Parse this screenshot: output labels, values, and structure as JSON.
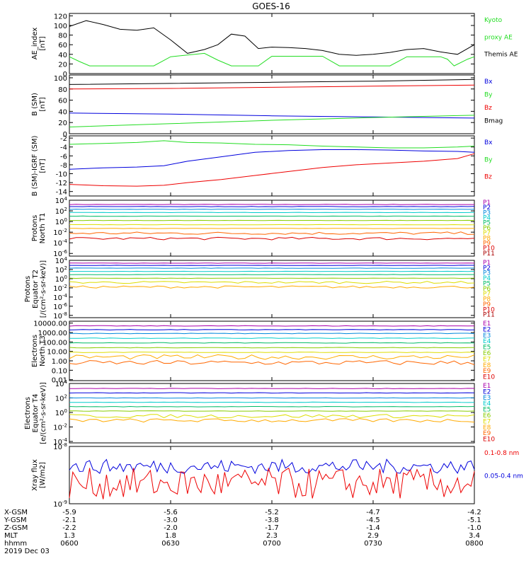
{
  "title": "GOES-16",
  "colors": {
    "black": "#000000",
    "green": "#22dd22",
    "red": "#ee0000",
    "blue": "#0000dd",
    "spec": [
      "#000000",
      "#aa00aa",
      "#0000dd",
      "#0088dd",
      "#00cccc",
      "#00bb66",
      "#88cc00",
      "#dddd00",
      "#ffaa00",
      "#ff6600",
      "#dd0000",
      "#aa0000"
    ]
  },
  "chart_data": [
    {
      "id": "ae",
      "type": "line",
      "ylabel": [
        "AE_index",
        "[nT]"
      ],
      "ylim": [
        0,
        125
      ],
      "yticks": [
        "0",
        "20",
        "40",
        "60",
        "80",
        "100",
        "120"
      ],
      "ytickvals": [
        0,
        20,
        40,
        60,
        80,
        100,
        120
      ],
      "series": [
        {
          "name": "Themis AE",
          "color": "black",
          "x": [
            0,
            5,
            10,
            15,
            20,
            25,
            30,
            35,
            40,
            44,
            48,
            52,
            56,
            60,
            65,
            70,
            75,
            80,
            85,
            90,
            95,
            100,
            105,
            110,
            115,
            120
          ],
          "y": [
            98,
            110,
            102,
            92,
            90,
            95,
            70,
            42,
            50,
            60,
            82,
            78,
            52,
            55,
            54,
            52,
            48,
            40,
            38,
            40,
            44,
            50,
            52,
            45,
            40,
            60
          ]
        },
        {
          "name": "Kyoto proxy AE",
          "color": "green",
          "x": [
            0,
            3,
            6,
            10,
            20,
            25,
            30,
            40,
            44,
            48,
            52,
            56,
            60,
            70,
            75,
            80,
            90,
            95,
            100,
            110,
            112,
            114,
            118,
            120
          ],
          "y": [
            35,
            25,
            16,
            16,
            16,
            16,
            35,
            42,
            28,
            16,
            16,
            16,
            36,
            36,
            36,
            16,
            16,
            16,
            35,
            35,
            30,
            16,
            30,
            35
          ]
        }
      ],
      "legend": [
        {
          "text": "Kyoto",
          "color": "green"
        },
        {
          "text": "proxy AE",
          "color": "green"
        },
        {
          "text": "Themis AE",
          "color": "black"
        }
      ]
    },
    {
      "id": "bsm",
      "type": "line",
      "ylabel": [
        "B (SM)",
        "[nT]"
      ],
      "ylim": [
        0,
        105
      ],
      "yticks": [
        "0",
        "20",
        "40",
        "60",
        "80",
        "100"
      ],
      "ytickvals": [
        0,
        20,
        40,
        60,
        80,
        100
      ],
      "series": [
        {
          "name": "Bx",
          "color": "blue",
          "x": [
            0,
            30,
            60,
            90,
            120
          ],
          "y": [
            37,
            35,
            32,
            30,
            28
          ]
        },
        {
          "name": "By",
          "color": "green",
          "x": [
            0,
            30,
            60,
            90,
            120
          ],
          "y": [
            12,
            18,
            24,
            29,
            33
          ]
        },
        {
          "name": "Bz",
          "color": "red",
          "x": [
            0,
            30,
            60,
            90,
            120
          ],
          "y": [
            80,
            81,
            83,
            85,
            87
          ]
        },
        {
          "name": "Bmag",
          "color": "black",
          "x": [
            0,
            30,
            60,
            90,
            120
          ],
          "y": [
            88,
            90,
            92,
            94,
            97
          ]
        }
      ],
      "legend": [
        {
          "text": "Bx",
          "color": "blue"
        },
        {
          "text": "By",
          "color": "green"
        },
        {
          "text": "Bz",
          "color": "red"
        },
        {
          "text": "Bmag",
          "color": "black"
        }
      ]
    },
    {
      "id": "digrf",
      "type": "line",
      "ylabel": [
        "B (SM)-IGRF (SM)",
        "[nT]"
      ],
      "ylim": [
        -15,
        -1.5
      ],
      "yticks": [
        "-2",
        "-4",
        "-6",
        "-8",
        "-10",
        "-12",
        "-14"
      ],
      "ytickvals": [
        -2,
        -4,
        -6,
        -8,
        -10,
        -12,
        -14
      ],
      "series": [
        {
          "name": "Bx",
          "color": "blue",
          "x": [
            0,
            10,
            20,
            28,
            35,
            45,
            55,
            65,
            75,
            85,
            95,
            105,
            115,
            120
          ],
          "y": [
            -9,
            -8.7,
            -8.5,
            -8.2,
            -7.2,
            -6.2,
            -5.2,
            -4.8,
            -4.6,
            -4.6,
            -4.7,
            -4.9,
            -5.0,
            -5.2
          ]
        },
        {
          "name": "By",
          "color": "green",
          "x": [
            0,
            10,
            20,
            28,
            35,
            45,
            55,
            65,
            75,
            85,
            95,
            105,
            115,
            120
          ],
          "y": [
            -3.4,
            -3.2,
            -3.0,
            -2.6,
            -3.0,
            -3.1,
            -3.4,
            -3.5,
            -3.8,
            -4.0,
            -4.2,
            -4.2,
            -4.0,
            -3.8
          ]
        },
        {
          "name": "Bz",
          "color": "red",
          "x": [
            0,
            10,
            20,
            28,
            35,
            45,
            55,
            65,
            75,
            85,
            95,
            105,
            115,
            120
          ],
          "y": [
            -12.4,
            -12.7,
            -12.8,
            -12.6,
            -12.0,
            -11.3,
            -10.4,
            -9.5,
            -8.6,
            -8.0,
            -7.6,
            -7.2,
            -6.6,
            -5.5
          ]
        }
      ],
      "legend": [
        {
          "text": "Bx",
          "color": "blue"
        },
        {
          "text": "By",
          "color": "green"
        },
        {
          "text": "Bz",
          "color": "red"
        }
      ]
    },
    {
      "id": "pnorth",
      "type": "line",
      "log": true,
      "ylabel": [
        "Protons",
        "North T1"
      ],
      "ylim": [
        -6.5,
        4
      ],
      "yticks": [
        "10^4",
        "10^2",
        "10^0",
        "10^-2",
        "10^-4",
        "10^-6"
      ],
      "ytickvals": [
        4,
        2,
        0,
        -2,
        -4,
        -6
      ],
      "levels": [
        3.2,
        2.8,
        2.3,
        1.7,
        1.0,
        0.2,
        -0.6,
        -1.3,
        -2.2,
        -3.2
      ],
      "legend": [
        "P1",
        "P2",
        "P3",
        "P4",
        "P5",
        "P6",
        "P7",
        "P8",
        "P9",
        "P10",
        "P11"
      ]
    },
    {
      "id": "pequator",
      "type": "line",
      "log": true,
      "ylabel": [
        "Protons",
        "Equator T2",
        "[/(cm²-s-sr-keV)]"
      ],
      "ylim": [
        -8.5,
        4
      ],
      "yticks": [
        "10^4",
        "10^2",
        "10^0",
        "10^-2",
        "10^-4",
        "10^-6",
        "10^-8"
      ],
      "ytickvals": [
        4,
        2,
        0,
        -2,
        -4,
        -6,
        -8
      ],
      "levels": [
        3.4,
        2.9,
        2.3,
        1.6,
        0.9,
        0.1,
        -0.8,
        -1.8
      ],
      "legend": [
        "P1",
        "P2",
        "P3",
        "P4",
        "P5",
        "P6",
        "P7",
        "P8",
        "P9",
        "P10",
        "P11"
      ]
    },
    {
      "id": "enorth",
      "type": "line",
      "log": true,
      "ylabel": [
        "Electrons",
        "North T3"
      ],
      "ylim": [
        -2.1,
        4.2
      ],
      "yticks": [
        "10000.00",
        "1000.00",
        "100.00",
        "10.00",
        "1.00",
        "0.10",
        "0.01"
      ],
      "ytickvals": [
        4,
        3,
        2,
        1,
        0,
        -1,
        -2
      ],
      "levels": [
        3.7,
        3.3,
        2.9,
        2.4,
        1.9,
        1.4,
        0.9,
        0.4,
        -0.2
      ],
      "legend": [
        "E1",
        "E2",
        "E3",
        "E4",
        "E5",
        "E6",
        "E7",
        "E8",
        "E9",
        "E10"
      ]
    },
    {
      "id": "eequator",
      "type": "line",
      "log": true,
      "ylabel": [
        "Electrons",
        "Equator T4",
        "[e/(cm²-s-sr-keV)]"
      ],
      "ylim": [
        -4.2,
        4
      ],
      "yticks": [
        "10^4",
        "10^2",
        "10^0",
        "10^-2",
        "10^-4"
      ],
      "ytickvals": [
        4,
        2,
        0,
        -2,
        -4
      ],
      "levels": [
        3.3,
        2.7,
        2.0,
        1.4,
        0.8,
        0.2,
        -0.5,
        -1.1
      ],
      "legend": [
        "E1",
        "E2",
        "E3",
        "E4",
        "E5",
        "E6",
        "E7",
        "E8",
        "E9",
        "E10"
      ]
    },
    {
      "id": "xray",
      "type": "line",
      "log": true,
      "ylabel": [
        "Xray flux",
        "[W/m2]"
      ],
      "ylim": [
        -9,
        -8
      ],
      "yticks": [
        "10^-8",
        "10^-9"
      ],
      "ytickvals": [
        -8,
        -9
      ],
      "series_names": [
        "0.1-0.8 nm",
        "0.05-0.4 nm"
      ],
      "legend": [
        {
          "text": "0.1-0.8 nm",
          "color": "red"
        },
        {
          "text": "0.05-0.4 nm",
          "color": "blue"
        }
      ]
    }
  ],
  "xaxis": {
    "range_min": [
      0,
      120
    ],
    "tick_minutes": [
      0,
      30,
      60,
      90,
      120
    ],
    "rows": [
      {
        "label": "X-GSM",
        "values": [
          "-5.9",
          "-5.6",
          "-5.2",
          "-4.7",
          "-4.2"
        ]
      },
      {
        "label": "Y-GSM",
        "values": [
          "-2.1",
          "-3.0",
          "-3.8",
          "-4.5",
          "-5.1"
        ]
      },
      {
        "label": "Z-GSM",
        "values": [
          "-2.2",
          "-2.0",
          "-1.7",
          "-1.4",
          "-1.0"
        ]
      },
      {
        "label": "MLT",
        "values": [
          "1.3",
          "1.8",
          "2.3",
          "2.9",
          "3.4"
        ]
      },
      {
        "label": "hhmm",
        "values": [
          "0600",
          "0630",
          "0700",
          "0730",
          "0800"
        ]
      }
    ],
    "date": "2019 Dec 03"
  }
}
